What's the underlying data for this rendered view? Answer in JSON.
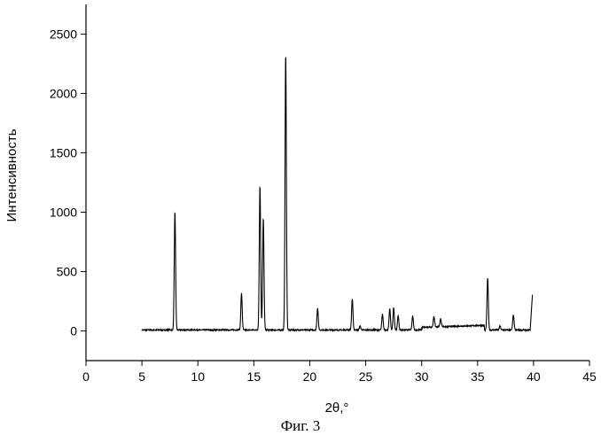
{
  "caption": "Фиг. 3",
  "chart_data": {
    "type": "line",
    "xlabel": "2θ,°",
    "ylabel": "Интенсивность",
    "xlim": [
      0,
      45
    ],
    "ylim": [
      -250,
      2750
    ],
    "x_ticks": [
      0,
      5,
      10,
      15,
      20,
      25,
      30,
      35,
      40,
      45
    ],
    "y_ticks": [
      0,
      500,
      1000,
      1500,
      2000,
      2500
    ],
    "line_color": "#000000",
    "grid": false,
    "baseline": 8,
    "x_start": 5.0,
    "x_end": 39.7,
    "peaks": [
      {
        "x": 7.95,
        "y": 1000
      },
      {
        "x": 13.9,
        "y": 315
      },
      {
        "x": 15.55,
        "y": 1225
      },
      {
        "x": 15.85,
        "y": 945
      },
      {
        "x": 17.85,
        "y": 2330
      },
      {
        "x": 20.7,
        "y": 190
      },
      {
        "x": 23.8,
        "y": 270
      },
      {
        "x": 24.5,
        "y": 40
      },
      {
        "x": 26.5,
        "y": 140
      },
      {
        "x": 27.15,
        "y": 185
      },
      {
        "x": 27.5,
        "y": 195
      },
      {
        "x": 27.9,
        "y": 130
      },
      {
        "x": 29.2,
        "y": 125
      },
      {
        "x": 31.1,
        "y": 95
      },
      {
        "x": 31.7,
        "y": 75
      },
      {
        "x": 35.9,
        "y": 445
      },
      {
        "x": 37.0,
        "y": 40
      },
      {
        "x": 38.2,
        "y": 135
      },
      {
        "x": 39.9,
        "y": 305
      }
    ]
  }
}
